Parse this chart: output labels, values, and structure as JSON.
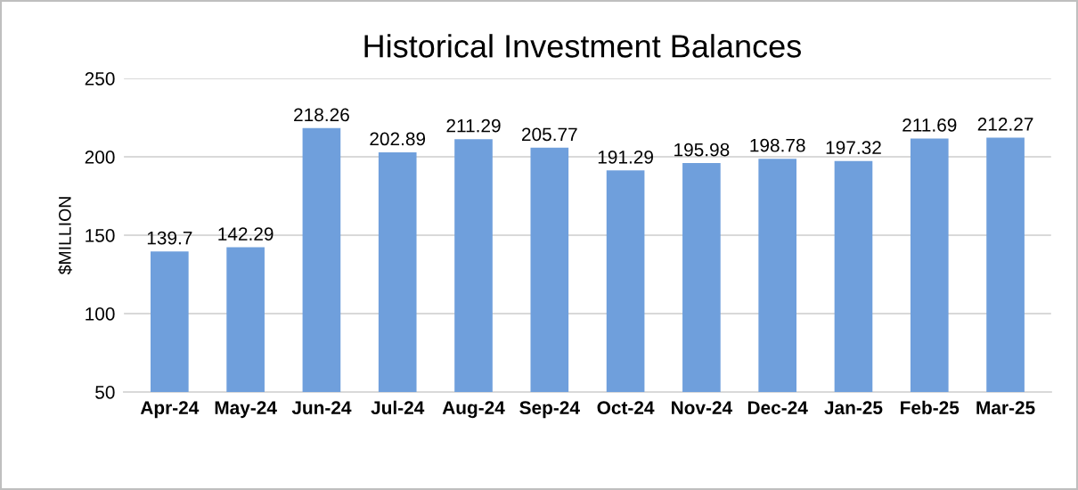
{
  "chart_data": {
    "type": "bar",
    "title": "Historical Investment Balances",
    "ylabel": "$MILLION",
    "categories": [
      "Apr-24",
      "May-24",
      "Jun-24",
      "Jul-24",
      "Aug-24",
      "Sep-24",
      "Oct-24",
      "Nov-24",
      "Dec-24",
      "Jan-25",
      "Feb-25",
      "Mar-25"
    ],
    "values": [
      139.7,
      142.29,
      218.26,
      202.89,
      211.29,
      205.77,
      191.29,
      195.98,
      198.78,
      197.32,
      211.69,
      212.27
    ],
    "color": "#6f9fdc",
    "ylim": [
      50,
      250
    ],
    "yticks": [
      50,
      100,
      150,
      200,
      250
    ],
    "grid": "y",
    "data_labels": true
  }
}
